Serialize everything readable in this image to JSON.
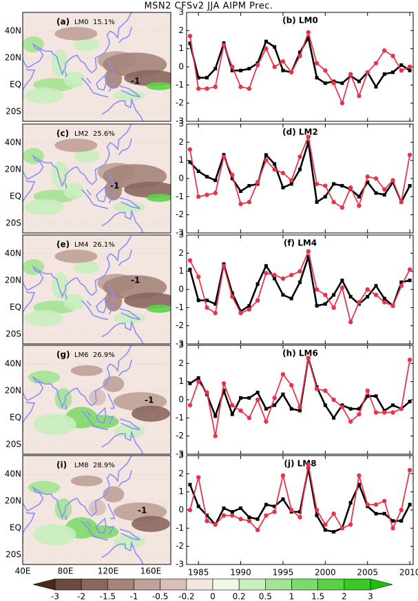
{
  "title": "MSN2 CFSv2 JJA AIPM Prec.",
  "maps": [
    {
      "label": "(a)",
      "lead": "LM0",
      "pct": "15.1%",
      "annotation": "-1"
    },
    {
      "label": "(c)",
      "lead": "LM2",
      "pct": "25.6%",
      "annotation": "-1"
    },
    {
      "label": "(e)",
      "lead": "LM4",
      "pct": "26.1%",
      "annotation": "-1"
    },
    {
      "label": "(g)",
      "lead": "LM6",
      "pct": "26.9%",
      "annotation": "-1"
    },
    {
      "label": "(i)",
      "lead": "LM8",
      "pct": "28.9%",
      "annotation": "-1"
    }
  ],
  "map_axes": {
    "lat_ticks": [
      {
        "value": 40,
        "label": "40N"
      },
      {
        "value": 20,
        "label": "20N"
      },
      {
        "value": 0,
        "label": "EQ"
      },
      {
        "value": -20,
        "label": "20S"
      }
    ],
    "lon_ticks": [
      {
        "value": 40,
        "label": "40E"
      },
      {
        "value": 80,
        "label": "80E"
      },
      {
        "value": 120,
        "label": "120E"
      },
      {
        "value": 160,
        "label": "160E"
      }
    ]
  },
  "colorbar": {
    "ticks": [
      -3,
      -2,
      -1.5,
      -1,
      -0.5,
      -0.2,
      0,
      0.2,
      0.5,
      1,
      1.5,
      2,
      3
    ],
    "colors": [
      "#4a2a20",
      "#6b4a3f",
      "#8a675d",
      "#a5847a",
      "#bfa199",
      "#d8c0b8",
      "#f3e6e0",
      "#edf8e8",
      "#c9eebd",
      "#a4e394",
      "#7fda6c",
      "#5bd146",
      "#3ac826",
      "#1ec00b"
    ]
  },
  "chart_data": [
    {
      "type": "line",
      "title": "(b) LM0",
      "x": [
        1984,
        1985,
        1986,
        1987,
        1988,
        1989,
        1990,
        1991,
        1992,
        1993,
        1994,
        1995,
        1996,
        1997,
        1998,
        1999,
        2000,
        2001,
        2002,
        2003,
        2004,
        2005,
        2006,
        2007,
        2008,
        2009,
        2010
      ],
      "xlim": [
        1983.6,
        2010.4
      ],
      "xticks": [
        1985,
        1990,
        1995,
        2000,
        2005,
        2010
      ],
      "ylim": [
        -3,
        3
      ],
      "yticks": [
        -3,
        -2,
        -1,
        0,
        1,
        2,
        3
      ],
      "series": [
        {
          "color": "#000000",
          "values": [
            1.3,
            -0.6,
            -0.6,
            -0.1,
            1.3,
            -0.2,
            -0.2,
            -0.1,
            0.2,
            1.4,
            1.1,
            -0.2,
            -0.3,
            0.8,
            1.6,
            -0.6,
            -0.9,
            -0.8,
            -0.9,
            -0.5,
            -0.8,
            -0.3,
            -1.1,
            -0.4,
            -0.3,
            0.1,
            -0.2
          ]
        },
        {
          "color": "#e8344a",
          "values": [
            1.7,
            -1.2,
            -1.2,
            -1.1,
            1.2,
            0.0,
            -1.1,
            -1.2,
            0.1,
            1.0,
            0.0,
            0.3,
            -0.3,
            0.6,
            1.9,
            0.2,
            -0.2,
            -0.9,
            -2.0,
            -0.4,
            -1.6,
            -0.3,
            0.2,
            0.9,
            0.6,
            -0.2,
            0.0
          ]
        }
      ]
    },
    {
      "type": "line",
      "title": "(d) LM2",
      "x": [
        1984,
        1985,
        1986,
        1987,
        1988,
        1989,
        1990,
        1991,
        1992,
        1993,
        1994,
        1995,
        1996,
        1997,
        1998,
        1999,
        2000,
        2001,
        2002,
        2003,
        2004,
        2005,
        2006,
        2007,
        2008,
        2009,
        2010
      ],
      "xlim": [
        1983.6,
        2010.4
      ],
      "xticks": [
        1985,
        1990,
        1995,
        2000,
        2005,
        2010
      ],
      "ylim": [
        -3,
        3
      ],
      "yticks": [
        -3,
        -2,
        -1,
        0,
        1,
        2,
        3
      ],
      "series": [
        {
          "color": "#000000",
          "values": [
            0.9,
            0.4,
            0.1,
            -0.1,
            1.3,
            0.0,
            -0.7,
            -0.4,
            -0.3,
            1.3,
            0.8,
            -0.5,
            -0.3,
            0.5,
            2.0,
            -1.3,
            -1.0,
            -0.3,
            -0.4,
            -0.6,
            -1.0,
            -0.2,
            -0.8,
            -0.9,
            -0.2,
            -1.3,
            -0.4
          ]
        },
        {
          "color": "#e8344a",
          "values": [
            1.6,
            -1.0,
            -0.9,
            -0.8,
            1.2,
            0.2,
            -1.4,
            -1.3,
            -0.2,
            1.0,
            0.5,
            0.3,
            -0.1,
            1.2,
            2.3,
            -0.3,
            -0.4,
            -1.3,
            -1.6,
            -0.5,
            -1.5,
            0.1,
            0.0,
            -0.6,
            -0.1,
            -1.3,
            1.3
          ]
        }
      ]
    },
    {
      "type": "line",
      "title": "(f) LM4",
      "x": [
        1984,
        1985,
        1986,
        1987,
        1988,
        1989,
        1990,
        1991,
        1992,
        1993,
        1994,
        1995,
        1996,
        1997,
        1998,
        1999,
        2000,
        2001,
        2002,
        2003,
        2004,
        2005,
        2006,
        2007,
        2008,
        2009,
        2010
      ],
      "xlim": [
        1983.6,
        2010.4
      ],
      "xticks": [
        1985,
        1990,
        1995,
        2000,
        2005,
        2010
      ],
      "ylim": [
        -3,
        3
      ],
      "yticks": [
        -3,
        -2,
        -1,
        0,
        1,
        2,
        3
      ],
      "series": [
        {
          "color": "#000000",
          "values": [
            1.1,
            -0.6,
            -0.6,
            -0.8,
            1.4,
            -0.2,
            -1.2,
            -0.9,
            0.3,
            1.3,
            0.6,
            -0.3,
            -0.5,
            0.4,
            1.8,
            -0.9,
            -0.8,
            -0.3,
            0.5,
            -0.4,
            -0.8,
            -0.4,
            0.2,
            -0.5,
            -0.9,
            0.4,
            0.5
          ]
        },
        {
          "color": "#e8344a",
          "values": [
            1.6,
            0.7,
            -1.0,
            -1.3,
            1.3,
            -0.4,
            -1.3,
            -1.1,
            -0.6,
            0.9,
            0.8,
            0.6,
            0.8,
            1.0,
            2.1,
            0.0,
            -0.3,
            -1.0,
            0.1,
            -1.8,
            -0.7,
            0.0,
            -0.3,
            -0.7,
            -0.9,
            0.2,
            1.1
          ]
        }
      ]
    },
    {
      "type": "line",
      "title": "(h) LM6",
      "x": [
        1984,
        1985,
        1986,
        1987,
        1988,
        1989,
        1990,
        1991,
        1992,
        1993,
        1994,
        1995,
        1996,
        1997,
        1998,
        1999,
        2000,
        2001,
        2002,
        2003,
        2004,
        2005,
        2006,
        2007,
        2008,
        2009,
        2010
      ],
      "xlim": [
        1983.6,
        2010.4
      ],
      "xticks": [
        1985,
        1990,
        1995,
        2000,
        2005,
        2010
      ],
      "ylim": [
        -3,
        3
      ],
      "yticks": [
        -3,
        -2,
        -1,
        0,
        1,
        2,
        3
      ],
      "series": [
        {
          "color": "#000000",
          "values": [
            0.9,
            1.2,
            0.3,
            -0.9,
            0.5,
            -0.8,
            0.1,
            0.1,
            0.4,
            -0.5,
            -0.3,
            0.3,
            -0.5,
            -0.6,
            2.3,
            0.7,
            -0.3,
            -1.0,
            -0.3,
            -0.5,
            -0.5,
            0.2,
            0.2,
            -0.6,
            -0.3,
            -0.5,
            -0.1
          ]
        },
        {
          "color": "#e8344a",
          "values": [
            -0.3,
            1.0,
            0.4,
            -2.0,
            0.9,
            -0.3,
            -0.6,
            -1.0,
            0.0,
            -1.2,
            0.1,
            1.4,
            0.8,
            -0.4,
            2.3,
            0.6,
            0.5,
            0.0,
            -0.4,
            -1.2,
            -0.8,
            0.5,
            -0.7,
            -0.7,
            -0.7,
            -0.5,
            2.2
          ]
        }
      ]
    },
    {
      "type": "line",
      "title": "(j) LM8",
      "x": [
        1984,
        1985,
        1986,
        1987,
        1988,
        1989,
        1990,
        1991,
        1992,
        1993,
        1994,
        1995,
        1996,
        1997,
        1998,
        1999,
        2000,
        2001,
        2002,
        2003,
        2004,
        2005,
        2006,
        2007,
        2008,
        2009,
        2010
      ],
      "xlim": [
        1983.6,
        2010.4
      ],
      "xticks": [
        1985,
        1990,
        1995,
        2000,
        2005,
        2010
      ],
      "ylim": [
        -3,
        3
      ],
      "yticks": [
        -3,
        -2,
        -1,
        0,
        1,
        2,
        3
      ],
      "series": [
        {
          "color": "#000000",
          "values": [
            1.4,
            0.2,
            -0.3,
            -0.8,
            0.1,
            -0.1,
            0.1,
            -0.4,
            -0.5,
            0.3,
            0.2,
            0.6,
            -0.1,
            -0.1,
            2.3,
            -0.3,
            -1.1,
            -1.2,
            -1.0,
            0.4,
            1.4,
            0.2,
            -0.2,
            -0.2,
            -0.6,
            -0.6,
            0.3
          ]
        },
        {
          "color": "#e8344a",
          "values": [
            0.0,
            1.8,
            -0.6,
            -0.8,
            -0.3,
            -0.3,
            -0.5,
            -0.6,
            -1.1,
            -0.3,
            -0.1,
            1.9,
            0.0,
            -0.4,
            2.5,
            0.0,
            -0.8,
            -0.2,
            -1.0,
            -0.8,
            1.9,
            0.3,
            0.3,
            0.5,
            -1.0,
            0.0,
            2.2
          ]
        }
      ]
    }
  ]
}
